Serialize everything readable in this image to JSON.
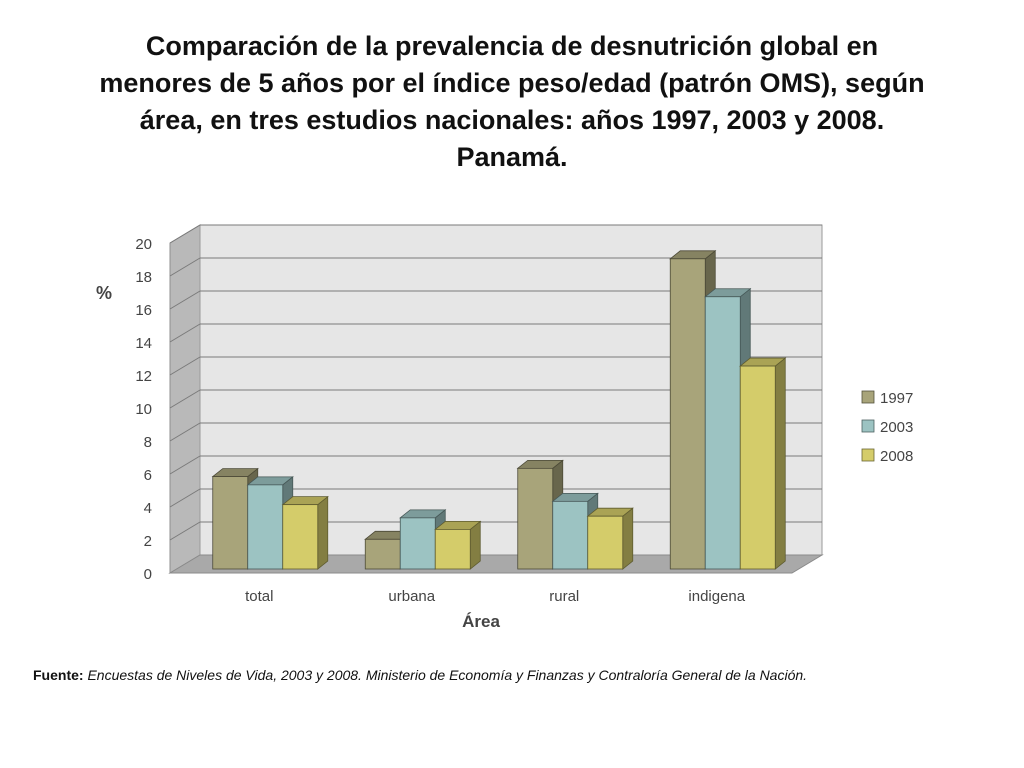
{
  "title_lines": [
    "Comparación de la prevalencia de desnutrición global en",
    "menores de 5 años por el índice peso/edad (patrón OMS), según",
    "área, en tres estudios nacionales: años 1997, 2003 y 2008.",
    "Panamá."
  ],
  "source": {
    "label": "Fuente:",
    "text": " Encuestas de Niveles de Vida, 2003 y 2008.  Ministerio de Economía y Finanzas y Contraloría General de la Nación."
  },
  "chart_data": {
    "type": "bar",
    "ylabel": "%",
    "xlabel": "Área",
    "ylim": [
      0,
      20
    ],
    "yticks": [
      0,
      2,
      4,
      6,
      8,
      10,
      12,
      14,
      16,
      18,
      20
    ],
    "categories": [
      "total",
      "urbana",
      "rural",
      "indigena"
    ],
    "series": [
      {
        "name": "1997",
        "values": [
          5.6,
          1.8,
          6.1,
          18.8
        ],
        "color": "#a8a47a"
      },
      {
        "name": "2003",
        "values": [
          5.1,
          3.1,
          4.1,
          16.5
        ],
        "color": "#9cc3c2"
      },
      {
        "name": "2008",
        "values": [
          3.9,
          2.4,
          3.2,
          12.3
        ],
        "color": "#d4cc6a"
      }
    ],
    "grid": true,
    "legend": "right",
    "style": "3d-clustered"
  }
}
